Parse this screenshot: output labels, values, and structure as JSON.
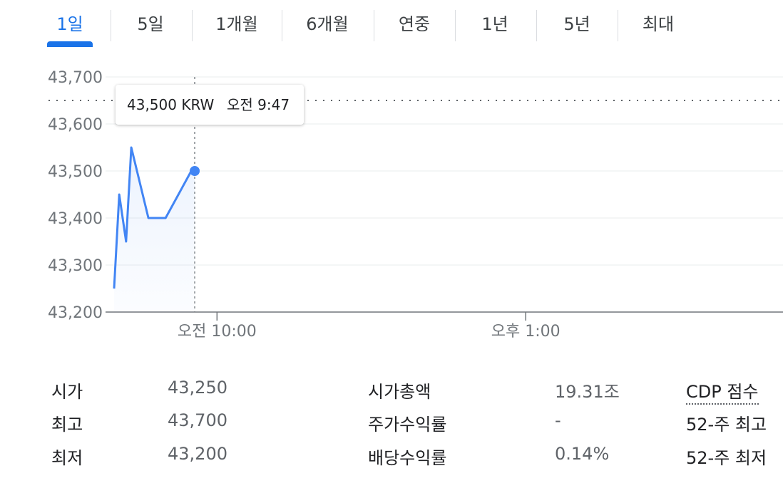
{
  "tabs": [
    {
      "label": "1일",
      "active": true
    },
    {
      "label": "5일"
    },
    {
      "label": "1개월"
    },
    {
      "label": "6개월"
    },
    {
      "label": "연중"
    },
    {
      "label": "1년"
    },
    {
      "label": "5년"
    },
    {
      "label": "최대"
    }
  ],
  "tooltip": {
    "price": "43,500 KRW",
    "time": "오전 9:47"
  },
  "chart_data": {
    "type": "line",
    "series": [
      {
        "x": [
          "09:00",
          "09:03",
          "09:07",
          "09:10",
          "09:20",
          "09:30",
          "09:45",
          "09:47"
        ],
        "values": [
          43250,
          43450,
          43350,
          43550,
          43400,
          43400,
          43500,
          43500
        ]
      }
    ],
    "y_ticks": [
      "43,700",
      "43,600",
      "43,500",
      "43,400",
      "43,300",
      "43,200"
    ],
    "ylim": [
      43200,
      43700
    ],
    "x_ticks": [
      {
        "time": "10:00",
        "label": "오전 10:00"
      },
      {
        "time": "13:00",
        "label": "오후 1:00"
      }
    ],
    "xlim": [
      "09:00",
      "15:30"
    ],
    "reference_value": 43650,
    "hover_time": "09:47",
    "line_color": "#4285f4",
    "grid": true
  },
  "stats": {
    "col1": [
      {
        "label": "시가",
        "value": "43,250"
      },
      {
        "label": "최고",
        "value": "43,700"
      },
      {
        "label": "최저",
        "value": "43,200"
      }
    ],
    "col2": [
      {
        "label": "시가총액",
        "value": "19.31조"
      },
      {
        "label": "주가수익률",
        "value": "-"
      },
      {
        "label": "배당수익률",
        "value": "0.14%"
      }
    ],
    "col3": [
      {
        "label": "CDP 점수"
      },
      {
        "label": "52-주 최고"
      },
      {
        "label": "52-주 최저"
      }
    ]
  }
}
